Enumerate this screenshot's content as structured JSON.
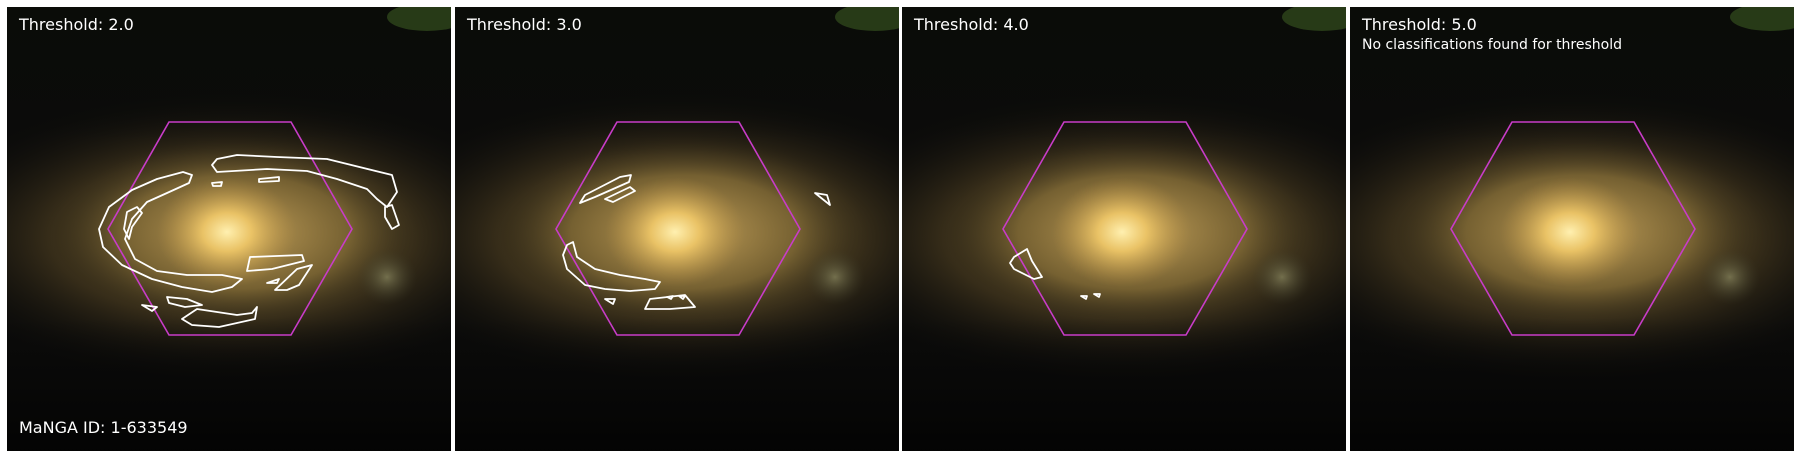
{
  "colors": {
    "hexagon": "#c83cc8",
    "contour": "#ffffff",
    "text": "#ffffff"
  },
  "panels": [
    {
      "threshold_label": "Threshold: 2.0",
      "note": "",
      "manga_id": "MaNGA ID: 1-633549"
    },
    {
      "threshold_label": "Threshold: 3.0",
      "note": "",
      "manga_id": ""
    },
    {
      "threshold_label": "Threshold: 4.0",
      "note": "",
      "manga_id": ""
    },
    {
      "threshold_label": "Threshold: 5.0",
      "note": "No classifications found for threshold",
      "manga_id": ""
    }
  ]
}
